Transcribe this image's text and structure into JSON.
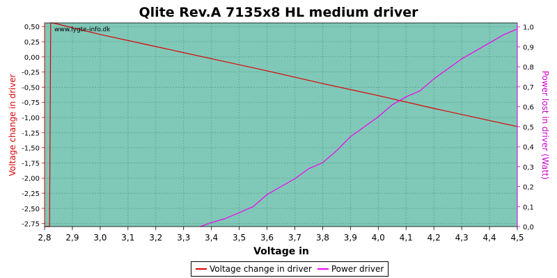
{
  "chart_data": {
    "type": "line",
    "title": "Qlite Rev.A 7135x8 HL medium driver",
    "watermark": "www.lygte-info.dk",
    "xlabel": "Voltage in",
    "ylabel_left": "Voltage change in driver",
    "ylabel_right": "Power lost in driver (Watt)",
    "xlim": [
      2.8,
      4.5
    ],
    "ylim_left": [
      -2.8,
      0.56
    ],
    "ylim_right": [
      0.0,
      1.02
    ],
    "x_ticks": [
      "2,8",
      "2,9",
      "3,0",
      "3,1",
      "3,2",
      "3,3",
      "3,4",
      "3,5",
      "3,6",
      "3,7",
      "3,8",
      "3,9",
      "4,0",
      "4,1",
      "4,2",
      "4,3",
      "4,4",
      "4,5"
    ],
    "y_left_ticks": [
      "0,50",
      "0,25",
      "0,00",
      "-0,25",
      "-0,50",
      "-0,75",
      "-1,00",
      "-1,25",
      "-1,50",
      "-1,75",
      "-2,00",
      "-2,25",
      "-2,50",
      "-2,75"
    ],
    "y_right_ticks": [
      "0,0",
      "0,1",
      "0,2",
      "0,3",
      "0,4",
      "0,5",
      "0,6",
      "0,7",
      "0,8",
      "0,9",
      "1,0"
    ],
    "grid": true,
    "legend_position": "bottom-center",
    "colors": {
      "plot_background": "#80c8b8",
      "grid": "#5aa090",
      "voltage_series": "#dd0000",
      "power_series": "#ee00ee",
      "left_axis": "#dd0000",
      "right_axis": "#cc00cc"
    },
    "series": [
      {
        "name": "Voltage change in driver",
        "axis": "left",
        "x": [
          2.8,
          2.815,
          2.818,
          2.822,
          2.83,
          3.0,
          3.2,
          3.4,
          3.6,
          3.8,
          4.0,
          4.2,
          4.4,
          4.5
        ],
        "y": [
          -2.8,
          -2.8,
          -2.8,
          0.56,
          0.56,
          0.37,
          0.17,
          -0.03,
          -0.23,
          -0.44,
          -0.64,
          -0.85,
          -1.05,
          -1.15
        ]
      },
      {
        "name": "Power driver",
        "axis": "right",
        "x": [
          3.36,
          3.4,
          3.45,
          3.5,
          3.55,
          3.6,
          3.65,
          3.7,
          3.75,
          3.8,
          3.85,
          3.9,
          3.95,
          4.0,
          4.05,
          4.1,
          4.15,
          4.2,
          4.25,
          4.3,
          4.35,
          4.4,
          4.45,
          4.5
        ],
        "y": [
          0.0,
          0.02,
          0.04,
          0.07,
          0.1,
          0.16,
          0.2,
          0.24,
          0.29,
          0.32,
          0.38,
          0.45,
          0.5,
          0.55,
          0.61,
          0.65,
          0.68,
          0.74,
          0.79,
          0.84,
          0.88,
          0.92,
          0.96,
          0.99
        ]
      }
    ]
  }
}
